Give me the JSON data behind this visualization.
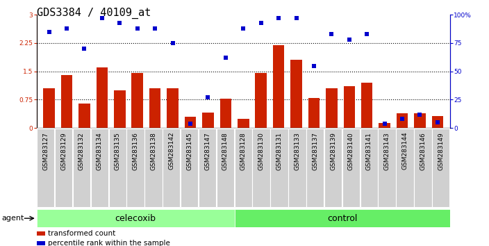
{
  "title": "GDS3384 / 40109_at",
  "samples": [
    "GSM283127",
    "GSM283129",
    "GSM283132",
    "GSM283134",
    "GSM283135",
    "GSM283136",
    "GSM283138",
    "GSM283142",
    "GSM283145",
    "GSM283147",
    "GSM283148",
    "GSM283128",
    "GSM283130",
    "GSM283131",
    "GSM283133",
    "GSM283137",
    "GSM283139",
    "GSM283140",
    "GSM283141",
    "GSM283143",
    "GSM283144",
    "GSM283146",
    "GSM283149"
  ],
  "bar_values": [
    1.05,
    1.4,
    0.65,
    1.6,
    1.0,
    1.45,
    1.05,
    1.05,
    0.3,
    0.4,
    0.78,
    0.25,
    1.45,
    2.2,
    1.8,
    0.8,
    1.05,
    1.1,
    1.2,
    0.13,
    0.38,
    0.38,
    0.32
  ],
  "dot_values": [
    85,
    88,
    70,
    97,
    93,
    88,
    88,
    75,
    4,
    27,
    62,
    88,
    93,
    97,
    97,
    55,
    83,
    78,
    83,
    4,
    8,
    12,
    5
  ],
  "celecoxib_count": 11,
  "control_count": 12,
  "ylim_left": [
    0,
    3
  ],
  "ylim_right": [
    0,
    100
  ],
  "yticks_left": [
    0,
    0.75,
    1.5,
    2.25,
    3
  ],
  "yticks_right": [
    0,
    25,
    50,
    75,
    100
  ],
  "bar_color": "#CC2200",
  "dot_color": "#0000CC",
  "celecoxib_color": "#99FF99",
  "control_color": "#66EE66",
  "ticklabel_bg": "#CCCCCC",
  "plot_bg": "#FFFFFF",
  "title_fontsize": 11,
  "tick_fontsize": 6.5,
  "agent_fontsize": 9
}
